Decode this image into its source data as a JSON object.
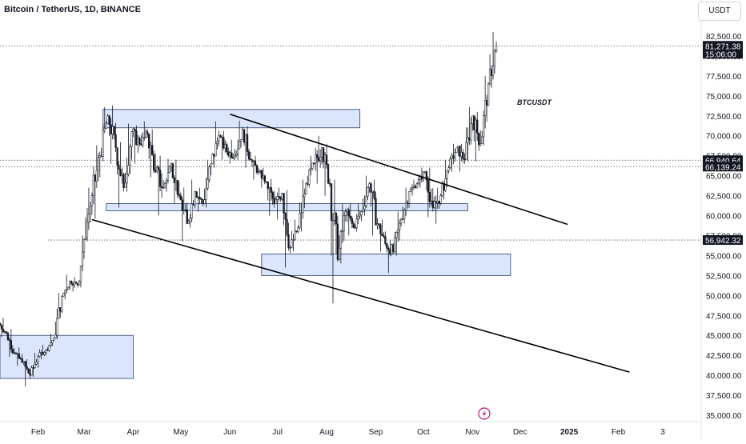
{
  "header": {
    "symbol_title": "Bitcoin / TetherUS, 1D, BINANCE",
    "currency": "USDT"
  },
  "chart_data": {
    "type": "candlestick",
    "symbol": "BTCUSDT",
    "y_axis": {
      "ticks": [
        35000,
        37500,
        40000,
        42500,
        45000,
        47500,
        50000,
        52500,
        55000,
        57500,
        60000,
        62500,
        65000,
        67500,
        70000,
        72500,
        75000,
        77500,
        80000,
        82500
      ],
      "tick_labels": [
        "35,000.00",
        "37,500.00",
        "40,000.00",
        "42,500.00",
        "45,000.00",
        "47,500.00",
        "50,000.00",
        "52,500.00",
        "55,000.00",
        "57,500.00",
        "60,000.00",
        "62,500.00",
        "65,000.00",
        "67,500.00",
        "70,000.00",
        "72,500.00",
        "75,000.00",
        "77,500.00",
        "80,000.00",
        "82,500.00"
      ],
      "range": [
        34500,
        83800
      ]
    },
    "x_axis": {
      "ticks": [
        "2024-02-01",
        "2024-03-01",
        "2024-04-01",
        "2024-05-01",
        "2024-06-01",
        "2024-07-01",
        "2024-08-01",
        "2024-09-01",
        "2024-10-01",
        "2024-11-01",
        "2024-12-01",
        "2025-01-01",
        "2025-02-01",
        "2025-03-01"
      ],
      "tick_labels": [
        "Feb",
        "Mar",
        "Apr",
        "May",
        "Jun",
        "Jul",
        "Aug",
        "Sep",
        "Oct",
        "Nov",
        "Dec",
        "2025",
        "Feb",
        "3"
      ],
      "range": [
        "2024-01-08",
        "2025-03-14"
      ]
    },
    "price_markers": [
      {
        "value": 81271.38,
        "label": "81,271.38",
        "sub_label": "15:06:00",
        "style": "dark",
        "line": "dotted"
      },
      {
        "value": 66940.64,
        "label": "66,940.64",
        "style": "dark",
        "line": "dotted"
      },
      {
        "value": 66139.24,
        "label": "66,139.24",
        "style": "dark",
        "line": "dotted"
      },
      {
        "value": 56942.32,
        "label": "56,942.32",
        "style": "dark",
        "line": "dotted"
      }
    ],
    "zones": [
      {
        "x_start": "2024-03-13",
        "x_end": "2024-08-22",
        "y_low": 71000,
        "y_high": 73300
      },
      {
        "x_start": "2024-03-15",
        "x_end": "2024-10-29",
        "y_low": 60600,
        "y_high": 61500
      },
      {
        "x_start": "2024-06-21",
        "x_end": "2024-11-25",
        "y_low": 52500,
        "y_high": 55200
      },
      {
        "x_start": "2024-01-01",
        "x_end": "2024-04-01",
        "y_low": 39600,
        "y_high": 45000
      }
    ],
    "trendlines": [
      {
        "from": [
          "2024-06-01",
          72700
        ],
        "to": [
          "2024-12-31",
          58900
        ]
      },
      {
        "from": [
          "2024-03-06",
          59500
        ],
        "to": [
          "2025-02-08",
          40400
        ]
      }
    ],
    "candles": [
      {
        "date": "2024-01-08",
        "o": 46500,
        "h": 47200,
        "l": 44800,
        "c": 45300
      },
      {
        "date": "2024-01-13",
        "o": 45300,
        "h": 45800,
        "l": 42300,
        "c": 42800
      },
      {
        "date": "2024-01-18",
        "o": 42800,
        "h": 43500,
        "l": 41200,
        "c": 41600
      },
      {
        "date": "2024-01-23",
        "o": 41600,
        "h": 42000,
        "l": 38600,
        "c": 40000
      },
      {
        "date": "2024-01-28",
        "o": 40000,
        "h": 42800,
        "l": 39800,
        "c": 42400
      },
      {
        "date": "2024-02-02",
        "o": 42400,
        "h": 43800,
        "l": 42000,
        "c": 43200
      },
      {
        "date": "2024-02-07",
        "o": 43200,
        "h": 45200,
        "l": 42900,
        "c": 44700
      },
      {
        "date": "2024-02-12",
        "o": 44700,
        "h": 50300,
        "l": 44500,
        "c": 49900
      },
      {
        "date": "2024-02-17",
        "o": 49900,
        "h": 52600,
        "l": 49500,
        "c": 51800
      },
      {
        "date": "2024-02-22",
        "o": 51800,
        "h": 52300,
        "l": 50500,
        "c": 51300
      },
      {
        "date": "2024-02-27",
        "o": 51300,
        "h": 57500,
        "l": 51000,
        "c": 57000
      },
      {
        "date": "2024-03-02",
        "o": 57000,
        "h": 63500,
        "l": 56800,
        "c": 62500
      },
      {
        "date": "2024-03-07",
        "o": 62500,
        "h": 68800,
        "l": 59600,
        "c": 67500
      },
      {
        "date": "2024-03-12",
        "o": 67500,
        "h": 73600,
        "l": 66800,
        "c": 72500
      },
      {
        "date": "2024-03-17",
        "o": 72500,
        "h": 73800,
        "l": 66500,
        "c": 68500
      },
      {
        "date": "2024-03-22",
        "o": 68500,
        "h": 69200,
        "l": 61000,
        "c": 63500
      },
      {
        "date": "2024-03-27",
        "o": 63500,
        "h": 71500,
        "l": 63000,
        "c": 70500
      },
      {
        "date": "2024-04-01",
        "o": 70500,
        "h": 71300,
        "l": 66500,
        "c": 69000
      },
      {
        "date": "2024-04-06",
        "o": 69000,
        "h": 71800,
        "l": 68500,
        "c": 70200
      },
      {
        "date": "2024-04-11",
        "o": 70200,
        "h": 70800,
        "l": 64800,
        "c": 65500
      },
      {
        "date": "2024-04-16",
        "o": 65500,
        "h": 67500,
        "l": 60000,
        "c": 63500
      },
      {
        "date": "2024-04-21",
        "o": 63500,
        "h": 67100,
        "l": 63000,
        "c": 66500
      },
      {
        "date": "2024-04-26",
        "o": 66500,
        "h": 67000,
        "l": 61500,
        "c": 62500
      },
      {
        "date": "2024-05-01",
        "o": 62500,
        "h": 63500,
        "l": 56800,
        "c": 59000
      },
      {
        "date": "2024-05-06",
        "o": 59000,
        "h": 64500,
        "l": 58500,
        "c": 63000
      },
      {
        "date": "2024-05-11",
        "o": 63000,
        "h": 63500,
        "l": 60500,
        "c": 61500
      },
      {
        "date": "2024-05-16",
        "o": 61500,
        "h": 67000,
        "l": 61000,
        "c": 66500
      },
      {
        "date": "2024-05-21",
        "o": 66500,
        "h": 71800,
        "l": 66000,
        "c": 70000
      },
      {
        "date": "2024-05-26",
        "o": 70000,
        "h": 70600,
        "l": 67000,
        "c": 68000
      },
      {
        "date": "2024-05-31",
        "o": 68000,
        "h": 69500,
        "l": 66500,
        "c": 67500
      },
      {
        "date": "2024-06-05",
        "o": 67500,
        "h": 71900,
        "l": 67000,
        "c": 70800
      },
      {
        "date": "2024-06-10",
        "o": 70800,
        "h": 71200,
        "l": 66000,
        "c": 67000
      },
      {
        "date": "2024-06-15",
        "o": 67000,
        "h": 67500,
        "l": 64500,
        "c": 65500
      },
      {
        "date": "2024-06-20",
        "o": 65500,
        "h": 66000,
        "l": 63500,
        "c": 64200
      },
      {
        "date": "2024-06-25",
        "o": 64200,
        "h": 64600,
        "l": 60000,
        "c": 61500
      },
      {
        "date": "2024-06-30",
        "o": 61500,
        "h": 63500,
        "l": 59500,
        "c": 62800
      },
      {
        "date": "2024-07-05",
        "o": 62800,
        "h": 63200,
        "l": 53500,
        "c": 56000
      },
      {
        "date": "2024-07-10",
        "o": 56000,
        "h": 59500,
        "l": 55500,
        "c": 58500
      },
      {
        "date": "2024-07-15",
        "o": 58500,
        "h": 64500,
        "l": 58000,
        "c": 64000
      },
      {
        "date": "2024-07-20",
        "o": 64000,
        "h": 67500,
        "l": 63500,
        "c": 66500
      },
      {
        "date": "2024-07-25",
        "o": 66500,
        "h": 70000,
        "l": 64000,
        "c": 68500
      },
      {
        "date": "2024-07-30",
        "o": 68500,
        "h": 69000,
        "l": 62500,
        "c": 64000
      },
      {
        "date": "2024-08-04",
        "o": 64000,
        "h": 64500,
        "l": 49000,
        "c": 54500
      },
      {
        "date": "2024-08-09",
        "o": 54500,
        "h": 61500,
        "l": 54000,
        "c": 60500
      },
      {
        "date": "2024-08-14",
        "o": 60500,
        "h": 61500,
        "l": 57500,
        "c": 58500
      },
      {
        "date": "2024-08-19",
        "o": 58500,
        "h": 61500,
        "l": 58000,
        "c": 60500
      },
      {
        "date": "2024-08-24",
        "o": 60500,
        "h": 65000,
        "l": 60000,
        "c": 64000
      },
      {
        "date": "2024-08-29",
        "o": 64000,
        "h": 64500,
        "l": 57500,
        "c": 59000
      },
      {
        "date": "2024-09-03",
        "o": 59000,
        "h": 59500,
        "l": 55500,
        "c": 56500
      },
      {
        "date": "2024-09-08",
        "o": 56500,
        "h": 57000,
        "l": 52800,
        "c": 55500
      },
      {
        "date": "2024-09-13",
        "o": 55500,
        "h": 60500,
        "l": 55000,
        "c": 59500
      },
      {
        "date": "2024-09-18",
        "o": 59500,
        "h": 63500,
        "l": 59000,
        "c": 63000
      },
      {
        "date": "2024-09-23",
        "o": 63000,
        "h": 64500,
        "l": 62500,
        "c": 64000
      },
      {
        "date": "2024-09-28",
        "o": 64000,
        "h": 66000,
        "l": 63500,
        "c": 65500
      },
      {
        "date": "2024-10-03",
        "o": 65500,
        "h": 66000,
        "l": 59800,
        "c": 61000
      },
      {
        "date": "2024-10-08",
        "o": 61000,
        "h": 63500,
        "l": 59000,
        "c": 62500
      },
      {
        "date": "2024-10-13",
        "o": 62500,
        "h": 67000,
        "l": 62000,
        "c": 66000
      },
      {
        "date": "2024-10-18",
        "o": 66000,
        "h": 69000,
        "l": 65500,
        "c": 68500
      },
      {
        "date": "2024-10-23",
        "o": 68500,
        "h": 69000,
        "l": 65500,
        "c": 67000
      },
      {
        "date": "2024-10-28",
        "o": 67000,
        "h": 73600,
        "l": 66800,
        "c": 72500
      },
      {
        "date": "2024-11-02",
        "o": 72500,
        "h": 73000,
        "l": 66800,
        "c": 69000
      },
      {
        "date": "2024-11-07",
        "o": 69000,
        "h": 77500,
        "l": 68800,
        "c": 76500
      },
      {
        "date": "2024-11-12",
        "o": 76500,
        "h": 83000,
        "l": 76000,
        "c": 81271.38
      }
    ],
    "annotation": {
      "text": "BTCUSDT",
      "date": "2024-12-10",
      "value": 74300
    }
  }
}
